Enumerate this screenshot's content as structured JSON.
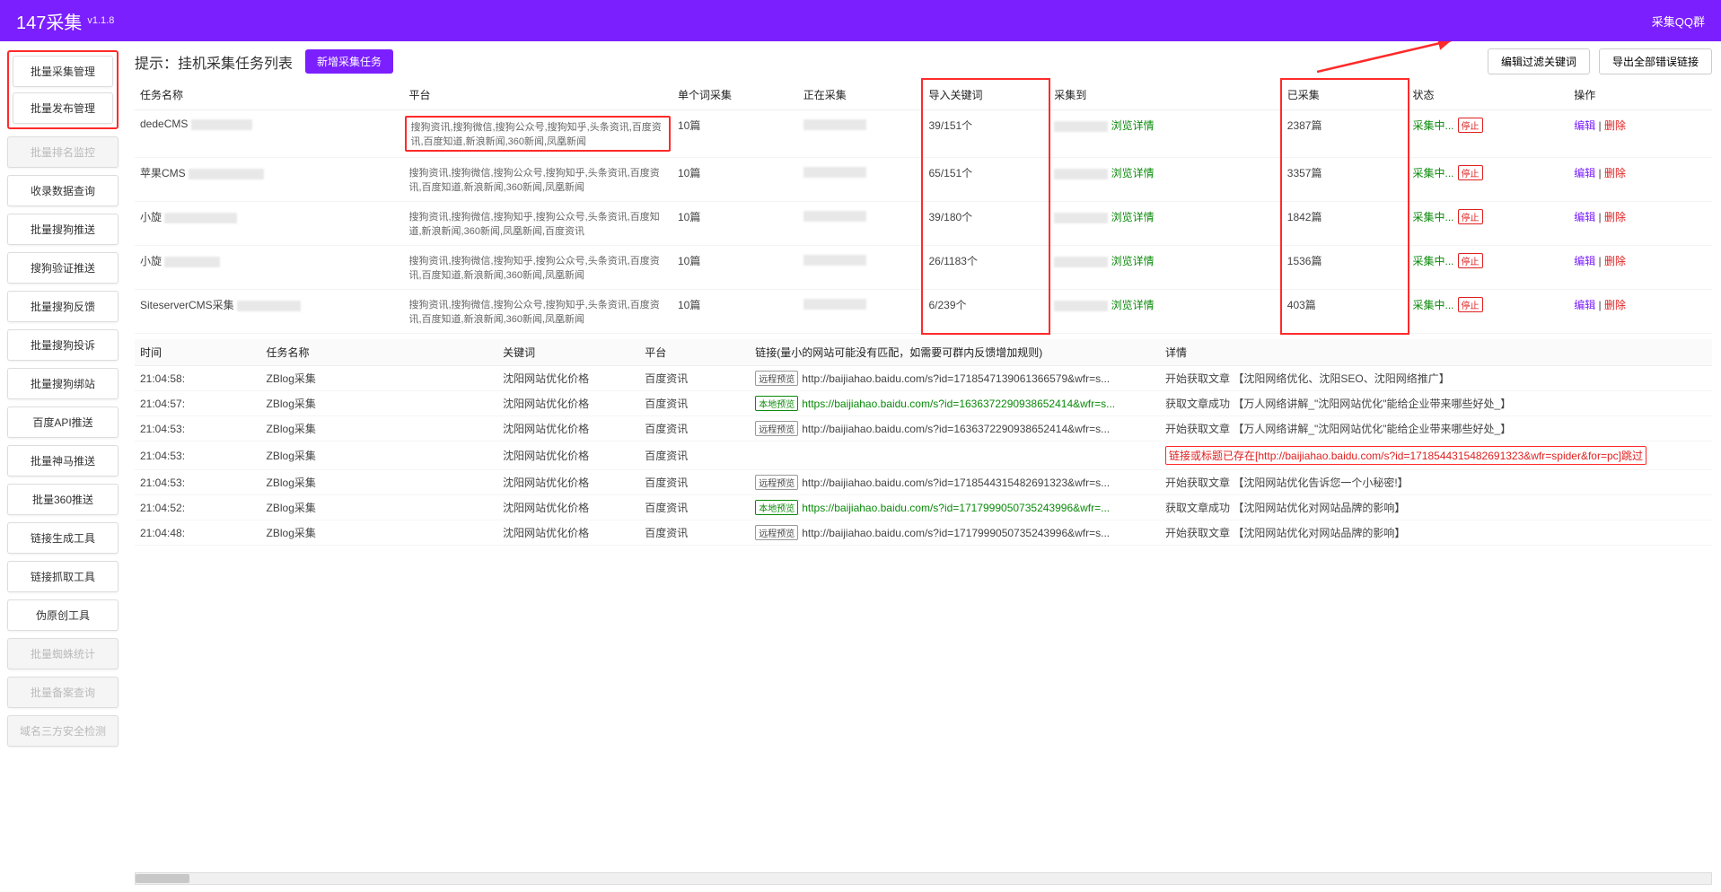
{
  "colors": {
    "primary": "#7b1fff",
    "highlight_border": "#ff2a2a",
    "success": "#0a8a0a",
    "danger": "#e02020",
    "purple_link": "#7b1fff"
  },
  "topbar": {
    "title": "147采集",
    "version": "v1.1.8",
    "right_link": "采集QQ群"
  },
  "sidebar": {
    "group1": [
      "批量采集管理",
      "批量发布管理"
    ],
    "buttons": [
      {
        "label": "批量排名监控",
        "disabled": true
      },
      {
        "label": "收录数据查询",
        "disabled": false
      },
      {
        "label": "批量搜狗推送",
        "disabled": false
      },
      {
        "label": "搜狗验证推送",
        "disabled": false
      },
      {
        "label": "批量搜狗反馈",
        "disabled": false
      },
      {
        "label": "批量搜狗投诉",
        "disabled": false
      },
      {
        "label": "批量搜狗绑站",
        "disabled": false
      },
      {
        "label": "百度API推送",
        "disabled": false
      },
      {
        "label": "批量神马推送",
        "disabled": false
      },
      {
        "label": "批量360推送",
        "disabled": false
      },
      {
        "label": "链接生成工具",
        "disabled": false
      },
      {
        "label": "链接抓取工具",
        "disabled": false
      },
      {
        "label": "伪原创工具",
        "disabled": false
      },
      {
        "label": "批量蜘蛛统计",
        "disabled": true
      },
      {
        "label": "批量备案查询",
        "disabled": true
      },
      {
        "label": "域名三方安全检测",
        "disabled": true
      }
    ]
  },
  "panel": {
    "title": "提示：挂机采集任务列表",
    "new_task_btn": "新增采集任务",
    "edit_filter_btn": "编辑过滤关键词",
    "export_btn": "导出全部错误链接"
  },
  "task_table": {
    "headers": {
      "name": "任务名称",
      "platform": "平台",
      "single": "单个词采集",
      "running": "正在采集",
      "keywords": "导入关键词",
      "collect_to": "采集到",
      "collected": "已采集",
      "status": "状态",
      "ops": "操作"
    },
    "status_label": "采集中...",
    "stop_label": "停止",
    "detail_link": "浏览详情",
    "edit_label": "编辑",
    "delete_label": "删除",
    "rows": [
      {
        "name": "dedeCMS",
        "platform": "搜狗资讯,搜狗微信,搜狗公众号,搜狗知乎,头条资讯,百度资讯,百度知道,新浪新闻,360新闻,凤凰新闻",
        "single": "10篇",
        "kw": "39/151个",
        "collected": "2387篇"
      },
      {
        "name": "苹果CMS",
        "platform": "搜狗资讯,搜狗微信,搜狗公众号,搜狗知乎,头条资讯,百度资讯,百度知道,新浪新闻,360新闻,凤凰新闻",
        "single": "10篇",
        "kw": "65/151个",
        "collected": "3357篇"
      },
      {
        "name": "小旋",
        "platform": "搜狗资讯,搜狗微信,搜狗知乎,搜狗公众号,头条资讯,百度知道,新浪新闻,360新闻,凤凰新闻,百度资讯",
        "single": "10篇",
        "kw": "39/180个",
        "collected": "1842篇"
      },
      {
        "name": "小旋",
        "platform": "搜狗资讯,搜狗微信,搜狗知乎,搜狗公众号,头条资讯,百度资讯,百度知道,新浪新闻,360新闻,凤凰新闻",
        "single": "10篇",
        "kw": "26/1183个",
        "collected": "1536篇"
      },
      {
        "name": "SiteserverCMS采集",
        "platform": "搜狗资讯,搜狗微信,搜狗公众号,搜狗知乎,头条资讯,百度资讯,百度知道,新浪新闻,360新闻,凤凰新闻",
        "single": "10篇",
        "kw": "6/239个",
        "collected": "403篇"
      }
    ]
  },
  "log_table": {
    "headers": {
      "time": "时间",
      "task": "任务名称",
      "keyword": "关键词",
      "platform": "平台",
      "link": "链接(量小的网站可能没有匹配，如需要可群内反馈增加规则)",
      "detail": "详情"
    },
    "remote_tag": "远程预览",
    "local_tag": "本地预览",
    "rows": [
      {
        "time": "21:04:58:",
        "task": "ZBlog采集",
        "kw": "沈阳网站优化价格",
        "plat": "百度资讯",
        "tag": "remote",
        "url": "http://baijiahao.baidu.com/s?id=1718547139061366579&wfr=s...",
        "detail": "开始获取文章 【沈阳网络优化、沈阳SEO、沈阳网络推广】"
      },
      {
        "time": "21:04:57:",
        "task": "ZBlog采集",
        "kw": "沈阳网站优化价格",
        "plat": "百度资讯",
        "tag": "local",
        "url": "https://baijiahao.baidu.com/s?id=1636372290938652414&wfr=s...",
        "url_green": true,
        "detail": "获取文章成功 【万人网络讲解_\"沈阳网站优化\"能给企业带来哪些好处_】"
      },
      {
        "time": "21:04:53:",
        "task": "ZBlog采集",
        "kw": "沈阳网站优化价格",
        "plat": "百度资讯",
        "tag": "remote",
        "url": "http://baijiahao.baidu.com/s?id=1636372290938652414&wfr=s...",
        "detail": "开始获取文章 【万人网络讲解_\"沈阳网站优化\"能给企业带来哪些好处_】"
      },
      {
        "time": "21:04:53:",
        "task": "ZBlog采集",
        "kw": "沈阳网站优化价格",
        "plat": "百度资讯",
        "tag": "",
        "url": "",
        "detail_red": "链接或标题已存在[http://baijiahao.baidu.com/s?id=1718544315482691323&wfr=spider&for=pc]跳过"
      },
      {
        "time": "21:04:53:",
        "task": "ZBlog采集",
        "kw": "沈阳网站优化价格",
        "plat": "百度资讯",
        "tag": "remote",
        "url": "http://baijiahao.baidu.com/s?id=1718544315482691323&wfr=s...",
        "detail": "开始获取文章 【沈阳网站优化告诉您一个小秘密!】"
      },
      {
        "time": "21:04:52:",
        "task": "ZBlog采集",
        "kw": "沈阳网站优化价格",
        "plat": "百度资讯",
        "tag": "local",
        "url": "https://baijiahao.baidu.com/s?id=1717999050735243996&wfr=...",
        "url_green": true,
        "detail": "获取文章成功 【沈阳网站优化对网站品牌的影响】"
      },
      {
        "time": "21:04:48:",
        "task": "ZBlog采集",
        "kw": "沈阳网站优化价格",
        "plat": "百度资讯",
        "tag": "remote",
        "url": "http://baijiahao.baidu.com/s?id=1717999050735243996&wfr=s...",
        "detail": "开始获取文章 【沈阳网站优化对网站品牌的影响】"
      }
    ]
  }
}
